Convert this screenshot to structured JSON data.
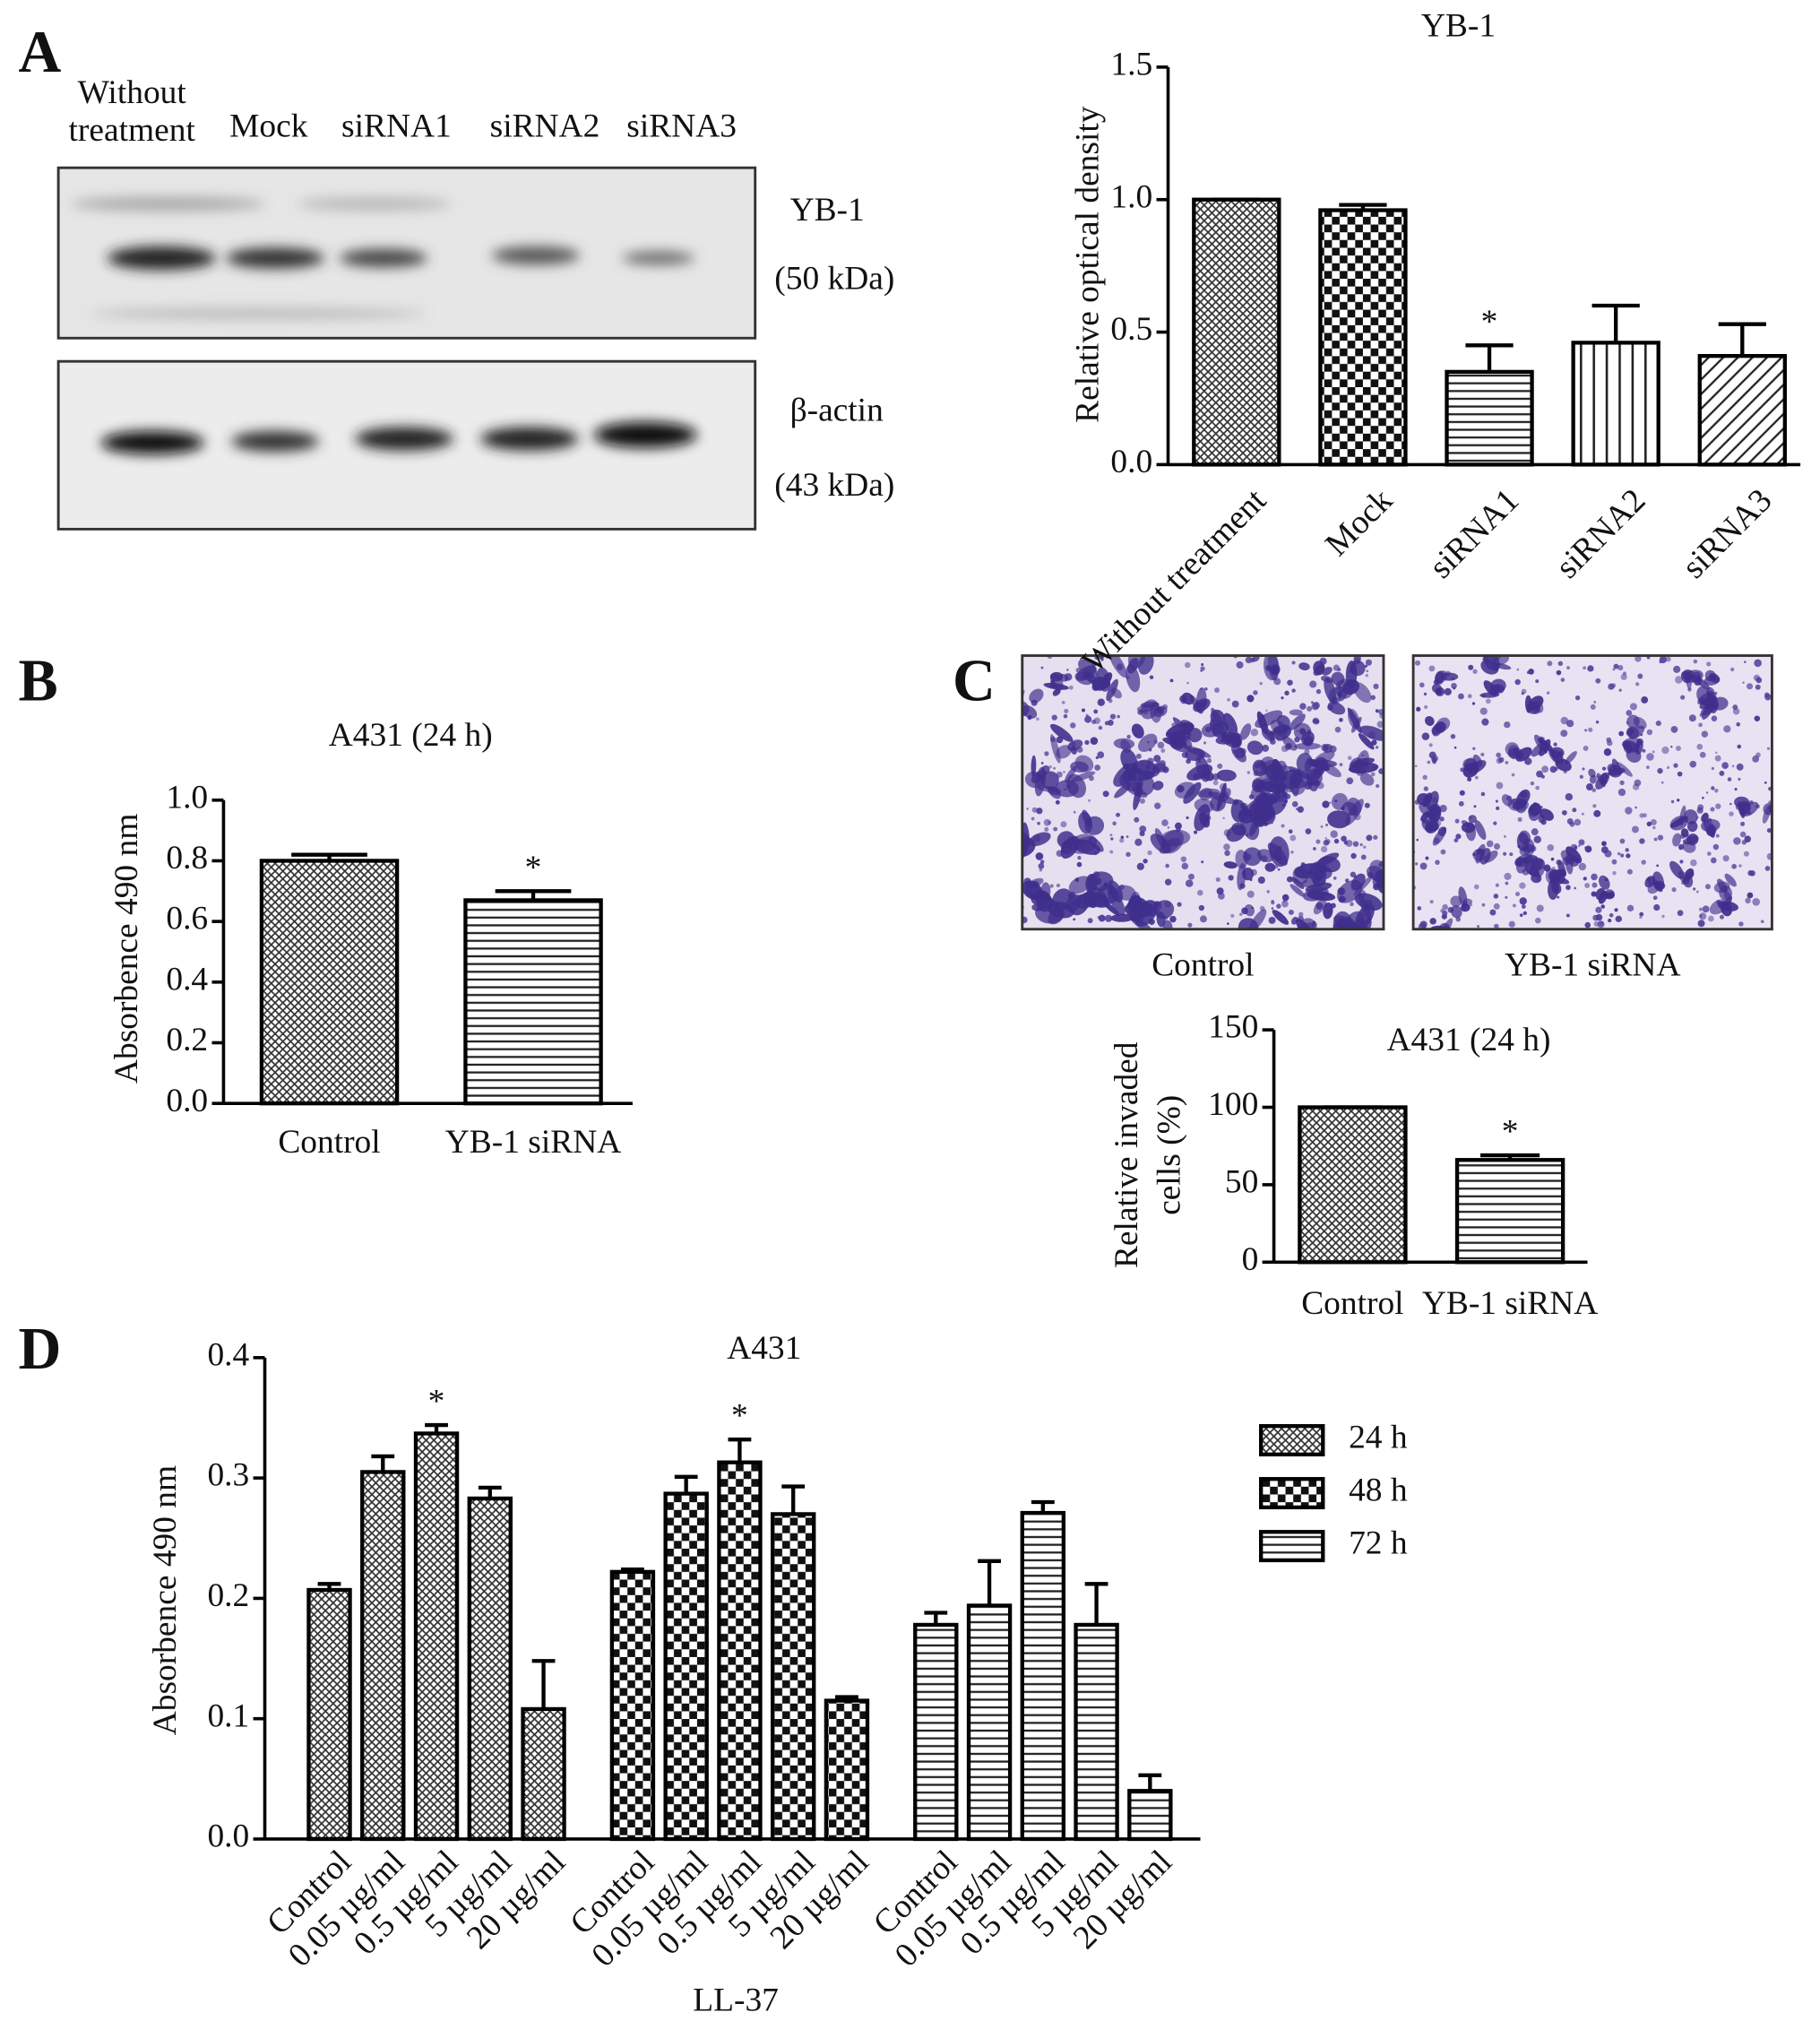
{
  "panels": [
    "A",
    "B",
    "C",
    "D"
  ],
  "blot": {
    "lanes": [
      [
        "Without",
        "treatment"
      ],
      [
        "Mock"
      ],
      [
        "siRNA1"
      ],
      [
        "siRNA2"
      ],
      [
        "siRNA3"
      ]
    ],
    "bands": [
      [
        "YB-1",
        "(50 kDa)"
      ],
      [
        "β-actin",
        "(43 kDa)"
      ]
    ]
  },
  "micrographs": {
    "captions": [
      "Control",
      "YB-1 siRNA"
    ]
  },
  "chart_data": [
    {
      "type": "bar",
      "title": "YB-1",
      "ylabel": "Relative optical density",
      "categories": [
        "Without treatment",
        "Mock",
        "siRNA1",
        "siRNA2",
        "siRNA3"
      ],
      "values": [
        1.0,
        0.96,
        0.35,
        0.46,
        0.41
      ],
      "errors": [
        0,
        0.02,
        0.1,
        0.14,
        0.12
      ],
      "significance": [
        null,
        null,
        "*",
        null,
        null
      ],
      "ylim": [
        0,
        1.5
      ],
      "yticks": [
        {
          "value": 0,
          "label": "0.0"
        },
        0.5,
        {
          "value": 1,
          "label": "1.0"
        },
        1.5
      ],
      "color": "#000000"
    },
    {
      "type": "bar",
      "title": "A431 (24 h)",
      "ylabel": "Absorbence 490 nm",
      "categories": [
        "Control",
        "YB-1 siRNA"
      ],
      "values": [
        0.8,
        0.67
      ],
      "errors": [
        0.02,
        0.03
      ],
      "significance": [
        null,
        "*"
      ],
      "ylim": [
        0,
        1.0
      ],
      "yticks": [
        {
          "value": 0,
          "label": "0.0"
        },
        0.2,
        0.4,
        0.6,
        0.8,
        {
          "value": 1,
          "label": "1.0"
        }
      ],
      "color": "#000000"
    },
    {
      "type": "bar",
      "title": "A431 (24 h)",
      "ylabel": [
        "Relative invaded",
        "cells (%)"
      ],
      "categories": [
        "Control",
        "YB-1 siRNA"
      ],
      "values": [
        100,
        66
      ],
      "errors": [
        0,
        3
      ],
      "significance": [
        null,
        "*"
      ],
      "ylim": [
        0,
        150
      ],
      "yticks": [
        0,
        50,
        100,
        150
      ],
      "color": "#000000"
    },
    {
      "type": "grouped_bar",
      "title": "A431",
      "ylabel": "Absorbence 490 nm",
      "xlabel": "LL-37",
      "categories": [
        "Control",
        "0.05 µg/ml",
        "0.5 µg/ml",
        "5 µg/ml",
        "20 µg/ml"
      ],
      "series": [
        {
          "name": "24 h",
          "values": [
            0.207,
            0.305,
            0.337,
            0.283,
            0.108
          ],
          "errors": [
            0.005,
            0.013,
            0.007,
            0.009,
            0.04
          ],
          "significance": [
            null,
            null,
            "*",
            null,
            null
          ]
        },
        {
          "name": "48 h",
          "values": [
            0.222,
            0.287,
            0.313,
            0.27,
            0.115
          ],
          "errors": [
            0.002,
            0.014,
            0.019,
            0.023,
            0.003
          ],
          "significance": [
            null,
            null,
            "*",
            null,
            null
          ]
        },
        {
          "name": "72 h",
          "values": [
            0.178,
            0.194,
            0.271,
            0.178,
            0.04
          ],
          "errors": [
            0.01,
            0.037,
            0.009,
            0.034,
            0.013
          ],
          "significance": [
            null,
            null,
            null,
            null,
            null
          ]
        }
      ],
      "ylim": [
        0,
        0.4
      ],
      "yticks": [
        {
          "value": 0,
          "label": "0.0"
        },
        0.1,
        0.2,
        0.3,
        0.4
      ],
      "color": "#000000"
    }
  ]
}
